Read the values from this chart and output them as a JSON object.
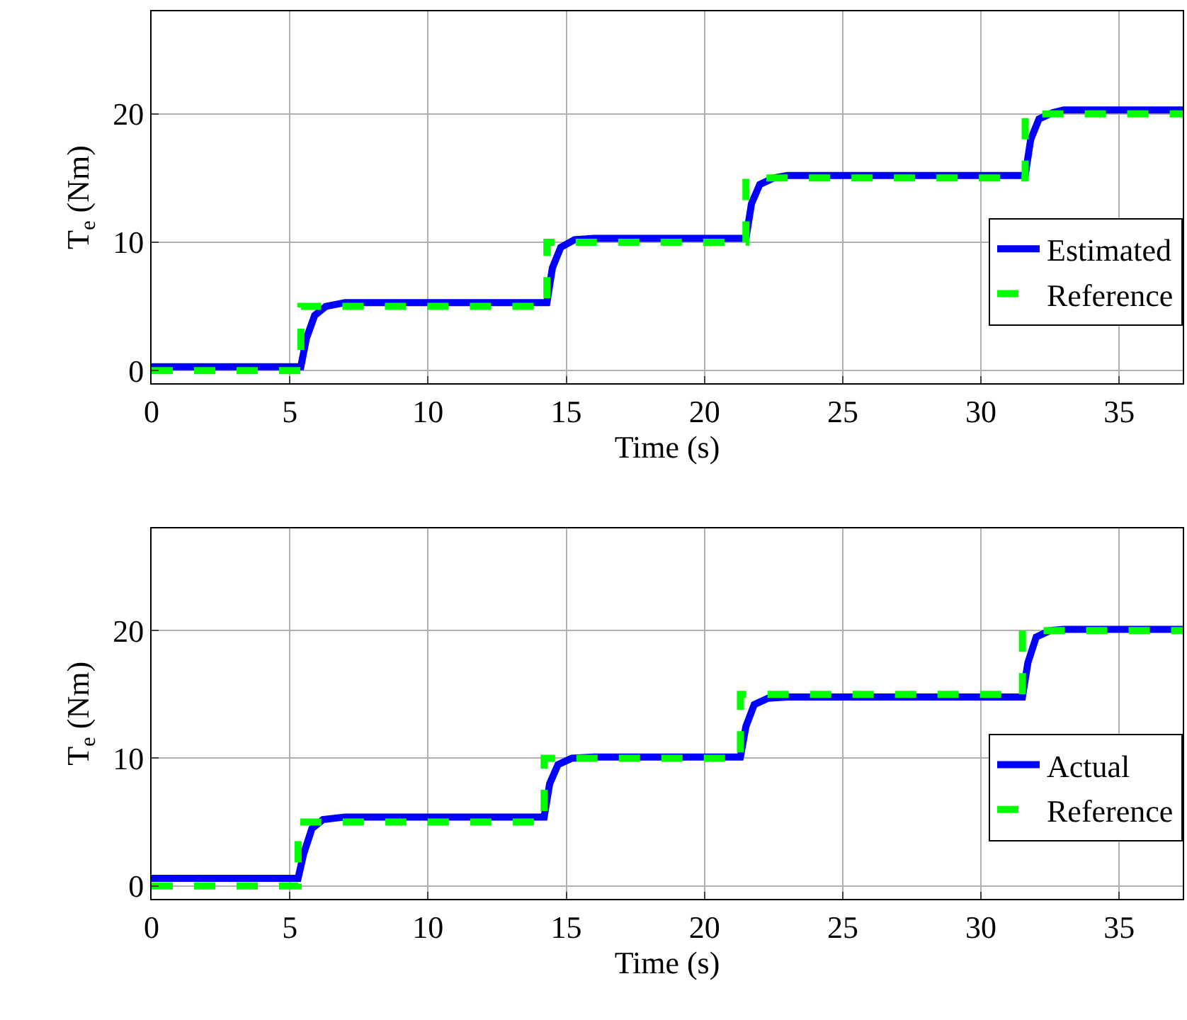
{
  "chart_data": [
    {
      "type": "line",
      "xlabel": "Time (s)",
      "ylabel": "T$_{e}$ (Nm)",
      "xlim": [
        0,
        37.3
      ],
      "ylim": [
        -1,
        28
      ],
      "xticks": [
        0,
        5,
        10,
        15,
        20,
        25,
        30,
        35
      ],
      "yticks": [
        0,
        10,
        20
      ],
      "grid": true,
      "legend": "right",
      "series": [
        {
          "name": "Estimated",
          "color": "#0000ff",
          "line_style": "solid",
          "x": [
            0,
            5.4,
            5.6,
            5.9,
            6.3,
            7,
            14.3,
            14.5,
            14.8,
            15.3,
            16,
            21.5,
            21.7,
            22,
            22.5,
            23,
            31.6,
            31.8,
            32.1,
            32.6,
            33,
            37.3
          ],
          "values": [
            0.3,
            0.3,
            2.5,
            4.3,
            5,
            5.3,
            5.3,
            8,
            9.6,
            10.2,
            10.3,
            10.3,
            13,
            14.5,
            15,
            15.2,
            15.2,
            18,
            19.6,
            20.1,
            20.3,
            20.3
          ]
        },
        {
          "name": "Reference",
          "color": "#00ff00",
          "line_style": "dashed",
          "x": [
            0,
            5.4,
            5.4,
            14.3,
            14.3,
            21.5,
            21.5,
            31.6,
            31.6,
            37.3
          ],
          "values": [
            0,
            0,
            5,
            5,
            10,
            10,
            15,
            15,
            20,
            20
          ]
        }
      ]
    },
    {
      "type": "line",
      "xlabel": "Time (s)",
      "ylabel": "T$_{e}$ (Nm)",
      "xlim": [
        0,
        37.3
      ],
      "ylim": [
        -1,
        28
      ],
      "xticks": [
        0,
        5,
        10,
        15,
        20,
        25,
        30,
        35
      ],
      "yticks": [
        0,
        10,
        20
      ],
      "grid": true,
      "legend": "right",
      "series": [
        {
          "name": "Actual",
          "color": "#0000ff",
          "line_style": "solid",
          "x": [
            0,
            5.3,
            5.5,
            5.8,
            6.2,
            7,
            14.2,
            14.4,
            14.7,
            15.2,
            16,
            21.3,
            21.5,
            21.8,
            22.3,
            23,
            31.5,
            31.7,
            32,
            32.5,
            33,
            37.3
          ],
          "values": [
            0.6,
            0.6,
            2.5,
            4.5,
            5.2,
            5.4,
            5.4,
            8,
            9.5,
            10,
            10.1,
            10.1,
            12.5,
            14.2,
            14.7,
            14.8,
            14.8,
            17.5,
            19.5,
            20,
            20.1,
            20.1
          ]
        },
        {
          "name": "Reference",
          "color": "#00ff00",
          "line_style": "dashed",
          "x": [
            0,
            5.3,
            5.3,
            14.2,
            14.2,
            21.3,
            21.3,
            31.5,
            31.5,
            37.3
          ],
          "values": [
            0,
            0,
            5,
            5,
            10,
            10,
            15,
            15,
            20,
            20
          ]
        }
      ]
    }
  ]
}
